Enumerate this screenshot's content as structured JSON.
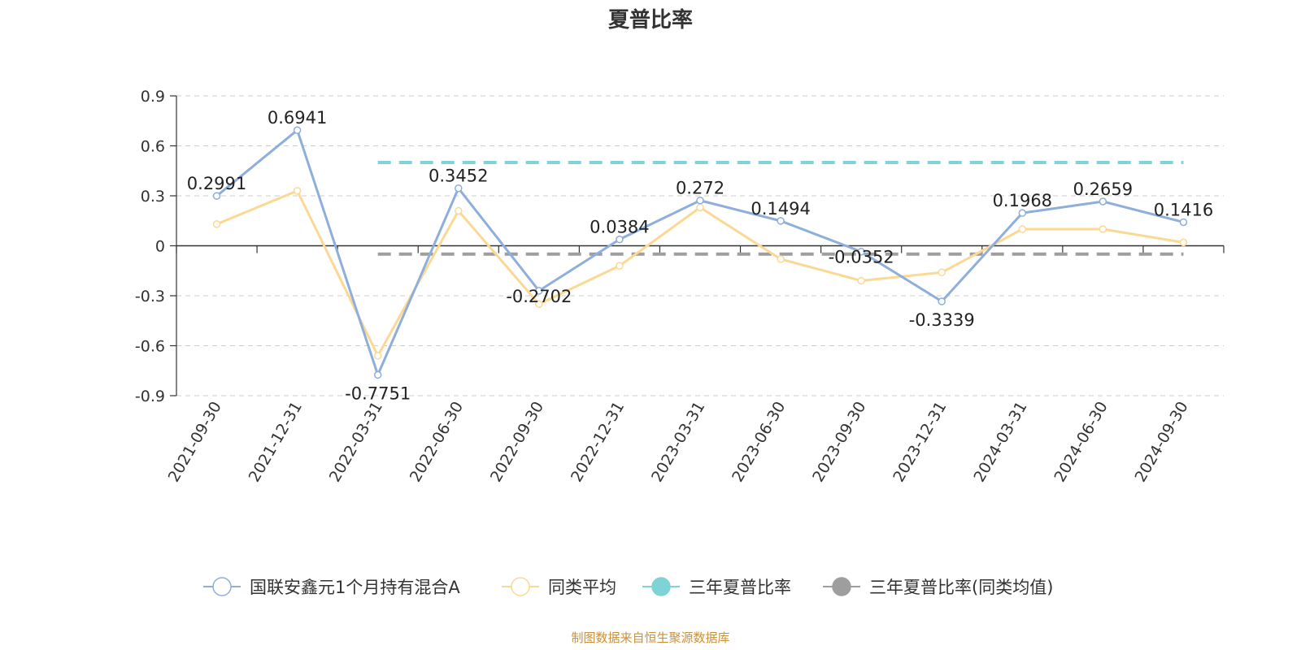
{
  "chart_data": {
    "type": "line",
    "title": "夏普比率",
    "categories": [
      "2021-09-30",
      "2021-12-31",
      "2022-03-31",
      "2022-06-30",
      "2022-09-30",
      "2022-12-31",
      "2023-03-31",
      "2023-06-30",
      "2023-09-30",
      "2023-12-31",
      "2024-03-31",
      "2024-06-30",
      "2024-09-30"
    ],
    "ylim": [
      -0.9,
      0.9
    ],
    "yticks": [
      "0.9",
      "0.6",
      "0.3",
      "0",
      "-0.3",
      "-0.6",
      "-0.9"
    ],
    "grid": true,
    "legend_position": "bottom",
    "series": [
      {
        "name": "国联安鑫元1个月持有混合A",
        "color": "#8eaedb",
        "values": [
          0.2991,
          0.6941,
          -0.7751,
          0.3452,
          -0.2702,
          0.0384,
          0.272,
          0.1494,
          -0.0352,
          -0.3339,
          0.1968,
          0.2659,
          0.1416
        ],
        "labels": [
          "0.2991",
          "0.6941",
          "-0.7751",
          "0.3452",
          "-0.2702",
          "0.0384",
          "0.272",
          "0.1494",
          "-0.0352",
          "-0.3339",
          "0.1968",
          "0.2659",
          "0.1416"
        ]
      },
      {
        "name": "同类平均",
        "color": "#fbd893",
        "values": [
          0.13,
          0.33,
          -0.66,
          0.21,
          -0.35,
          -0.12,
          0.23,
          -0.08,
          -0.21,
          -0.16,
          0.1,
          0.1,
          0.02
        ]
      },
      {
        "name": "三年夏普比率",
        "color": "#7fd3d6",
        "type": "reference",
        "value": 0.5,
        "from": "2022-03-31",
        "to": "2024-09-30"
      },
      {
        "name": "三年夏普比率(同类均值)",
        "color": "#9e9e9e",
        "type": "reference",
        "value": -0.05,
        "from": "2022-03-31",
        "to": "2024-09-30"
      }
    ]
  },
  "source_note": "制图数据来自恒生聚源数据库"
}
